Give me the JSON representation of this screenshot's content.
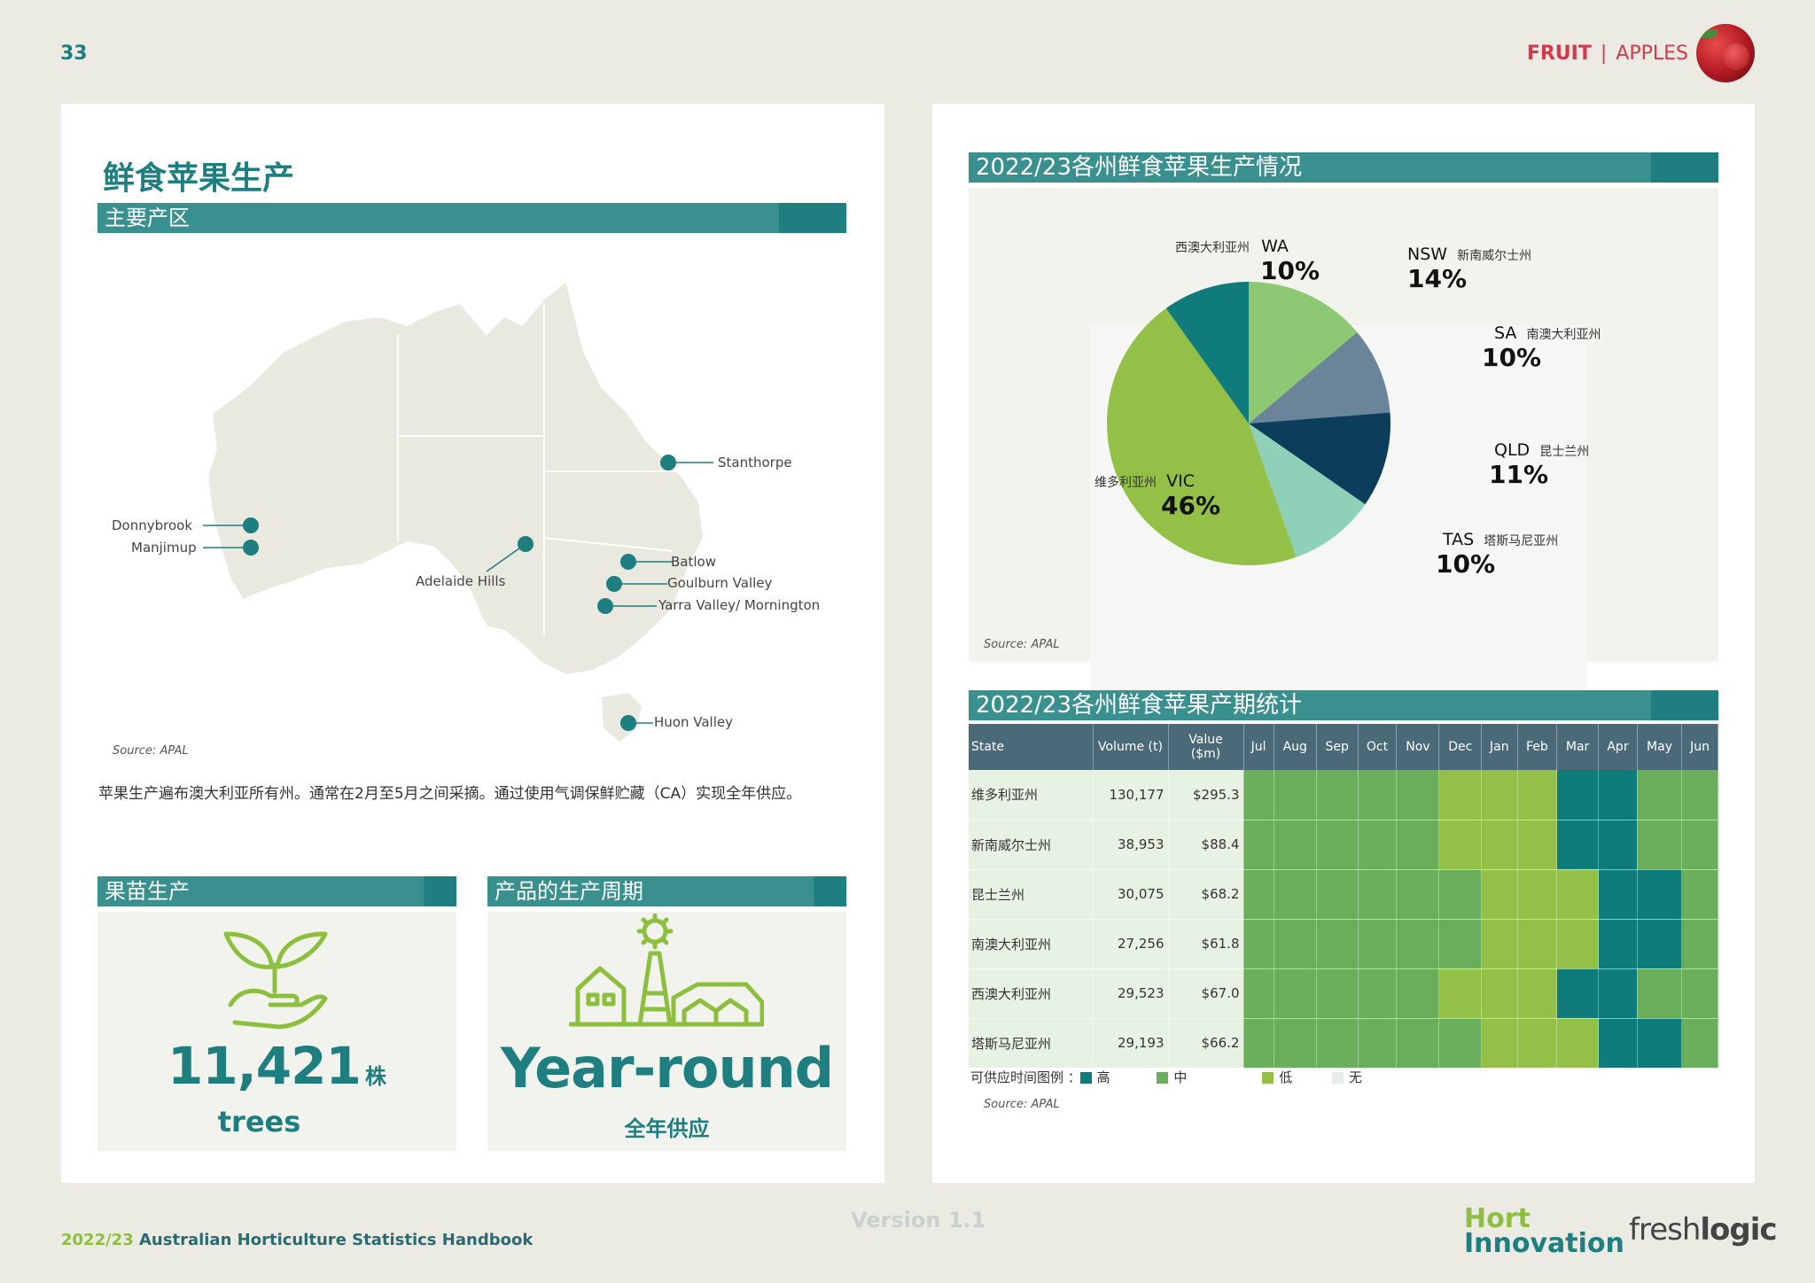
{
  "header": {
    "page_number": "33",
    "fruit_label": "FRUIT",
    "separator": "|",
    "category_label": "APPLES"
  },
  "left": {
    "title": "鲜食苹果生产",
    "regions_heading": "主要产区",
    "map_labels": {
      "stanthorpe": "Stanthorpe",
      "donnybrook": "Donnybrook",
      "manjimup": "Manjimup",
      "adelaide_hills": "Adelaide Hills",
      "batlow": "Batlow",
      "goulburn_valley": "Goulburn Valley",
      "yarra_valley": "Yarra Valley/ Mornington",
      "huon_valley": "Huon Valley"
    },
    "map_source": "Source: APAL",
    "description": "苹果生产遍布澳大利亚所有州。通常在2月至5月之间采摘。通过使用气调保鲜贮藏（CA）实现全年供应。",
    "nursery_heading": "果苗生产",
    "nursery_number": "11,421",
    "nursery_unit": "株",
    "nursery_trees": "trees",
    "cycle_heading": "产品的生产周期",
    "cycle_value": "Year-round",
    "cycle_cn": "全年供应"
  },
  "right": {
    "pie_heading": "2022/23各州鲜食苹果生产情况",
    "pie_source": "Source: APAL",
    "table_heading": "2022/23各州鲜食苹果产期统计",
    "table_source": "Source: APAL",
    "legend_label": "可供应时间图例",
    "legend_colon": "：",
    "legend": {
      "high": "高",
      "mid": "中",
      "low": "低",
      "none": "无"
    }
  },
  "chart_data": [
    {
      "type": "pie",
      "title": "2022/23各州鲜食苹果生产情况",
      "slices": [
        {
          "state": "NSW",
          "cn": "新南威尔士州",
          "pct": "14%",
          "value": 14,
          "color": "#8dc873"
        },
        {
          "state": "SA",
          "cn": "南澳大利亚州",
          "pct": "10%",
          "value": 10,
          "color": "#6a8599"
        },
        {
          "state": "QLD",
          "cn": "昆士兰州",
          "pct": "11%",
          "value": 11,
          "color": "#0c3e5c"
        },
        {
          "state": "TAS",
          "cn": "塔斯马尼亚州",
          "pct": "10%",
          "value": 10,
          "color": "#8ed1b8"
        },
        {
          "state": "VIC",
          "cn": "维多利亚州",
          "pct": "46%",
          "value": 46,
          "color": "#93c047"
        },
        {
          "state": "WA",
          "cn": "西澳大利亚州",
          "pct": "10%",
          "value": 10,
          "color": "#0f7b7a"
        }
      ]
    },
    {
      "type": "table",
      "title": "2022/23各州鲜食苹果产期统计",
      "columns": [
        "State",
        "Volume (t)",
        "Value ($m)",
        "Jul",
        "Aug",
        "Sep",
        "Oct",
        "Nov",
        "Dec",
        "Jan",
        "Feb",
        "Mar",
        "Apr",
        "May",
        "Jun"
      ],
      "rows": [
        {
          "state": "维多利亚州",
          "volume": "130,177",
          "value": "$295.3",
          "months": [
            "mid",
            "mid",
            "mid",
            "mid",
            "mid",
            "low",
            "low",
            "low",
            "high",
            "high",
            "mid",
            "mid"
          ]
        },
        {
          "state": "新南威尔士州",
          "volume": "38,953",
          "value": "$88.4",
          "months": [
            "mid",
            "mid",
            "mid",
            "mid",
            "mid",
            "low",
            "low",
            "low",
            "high",
            "high",
            "mid",
            "mid"
          ]
        },
        {
          "state": "昆士兰州",
          "volume": "30,075",
          "value": "$68.2",
          "months": [
            "mid",
            "mid",
            "mid",
            "mid",
            "mid",
            "mid",
            "low",
            "low",
            "low",
            "high",
            "high",
            "mid"
          ]
        },
        {
          "state": "南澳大利亚州",
          "volume": "27,256",
          "value": "$61.8",
          "months": [
            "mid",
            "mid",
            "mid",
            "mid",
            "mid",
            "mid",
            "low",
            "low",
            "low",
            "high",
            "high",
            "mid"
          ]
        },
        {
          "state": "西澳大利亚州",
          "volume": "29,523",
          "value": "$67.0",
          "months": [
            "mid",
            "mid",
            "mid",
            "mid",
            "mid",
            "low",
            "low",
            "low",
            "high",
            "high",
            "mid",
            "mid"
          ]
        },
        {
          "state": "塔斯马尼亚州",
          "volume": "29,193",
          "value": "$66.2",
          "months": [
            "mid",
            "mid",
            "mid",
            "mid",
            "mid",
            "mid",
            "low",
            "low",
            "low",
            "high",
            "high",
            "mid"
          ]
        }
      ],
      "level_colors": {
        "high": "#0f7b7a",
        "mid": "#6aae5c",
        "low": "#93c047",
        "none": "#e6ecea"
      }
    }
  ],
  "footer": {
    "handbook_year": "2022/23",
    "handbook_title": " Australian Horticulture Statistics Handbook",
    "version": "Version 1.1",
    "hort_line1": "Hort",
    "hort_line2": "Innovation",
    "fresh": "fresh",
    "logic": "logic"
  }
}
